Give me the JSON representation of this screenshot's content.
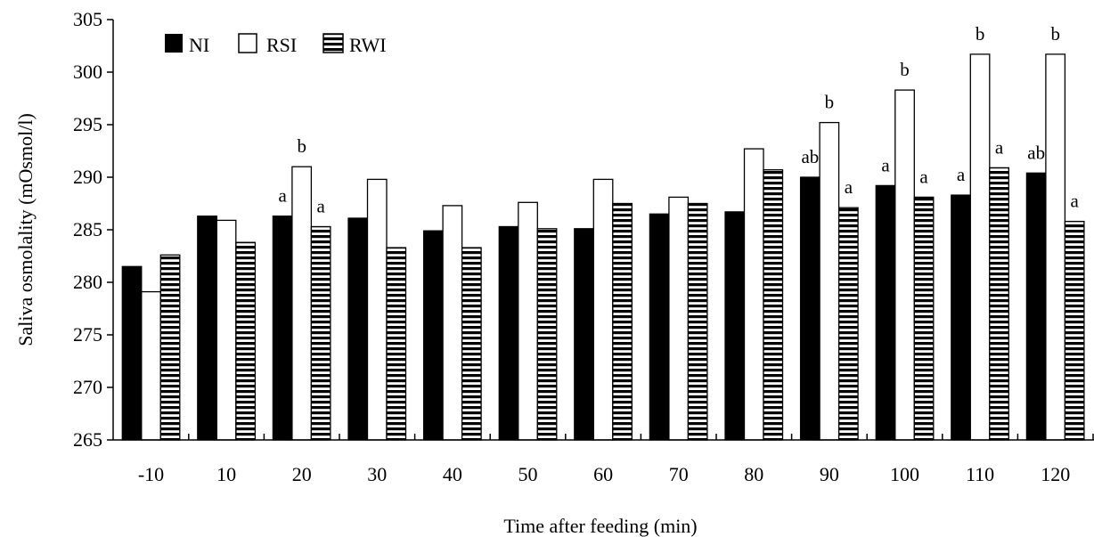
{
  "chart_data": {
    "type": "bar",
    "title": "",
    "xlabel": "Time after feeding (min)",
    "ylabel": "Saliva osmolality (mOsmol/l)",
    "ylim": [
      265,
      305
    ],
    "yticks": [
      265,
      270,
      275,
      280,
      285,
      290,
      295,
      300,
      305
    ],
    "grid": false,
    "legend_position": "top-left",
    "categories": [
      "-10",
      "10",
      "20",
      "30",
      "40",
      "50",
      "60",
      "70",
      "80",
      "90",
      "100",
      "110",
      "120"
    ],
    "series": [
      {
        "name": "NI",
        "style": "solid-black",
        "values": [
          281.5,
          286.3,
          286.3,
          286.1,
          284.9,
          285.3,
          285.1,
          286.5,
          286.7,
          290.0,
          289.2,
          288.3,
          290.4
        ]
      },
      {
        "name": "RSI",
        "style": "white",
        "values": [
          279.1,
          285.9,
          291.0,
          289.8,
          287.3,
          287.6,
          289.8,
          288.1,
          292.7,
          295.2,
          298.3,
          301.7,
          301.7
        ]
      },
      {
        "name": "RWI",
        "style": "horizontal-stripes",
        "values": [
          282.6,
          283.8,
          285.3,
          283.3,
          283.3,
          285.1,
          287.5,
          287.5,
          290.7,
          287.1,
          288.1,
          290.9,
          285.8
        ]
      }
    ],
    "annotations": [
      {
        "category": "20",
        "series": "NI",
        "text": "a"
      },
      {
        "category": "20",
        "series": "RSI",
        "text": "b"
      },
      {
        "category": "20",
        "series": "RWI",
        "text": "a"
      },
      {
        "category": "90",
        "series": "NI",
        "text": "ab"
      },
      {
        "category": "90",
        "series": "RSI",
        "text": "b"
      },
      {
        "category": "90",
        "series": "RWI",
        "text": "a"
      },
      {
        "category": "100",
        "series": "NI",
        "text": "a"
      },
      {
        "category": "100",
        "series": "RSI",
        "text": "b"
      },
      {
        "category": "100",
        "series": "RWI",
        "text": "a"
      },
      {
        "category": "110",
        "series": "NI",
        "text": "a"
      },
      {
        "category": "110",
        "series": "RSI",
        "text": "b"
      },
      {
        "category": "110",
        "series": "RWI",
        "text": "a"
      },
      {
        "category": "120",
        "series": "NI",
        "text": "ab"
      },
      {
        "category": "120",
        "series": "RSI",
        "text": "b"
      },
      {
        "category": "120",
        "series": "RWI",
        "text": "a"
      }
    ]
  }
}
